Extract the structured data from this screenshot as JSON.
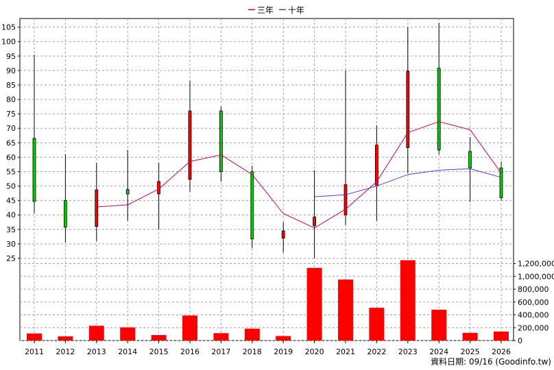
{
  "colors": {
    "up": "#ff0000",
    "down": "#00cc00",
    "ma3": "#cc0066",
    "ma10": "#6633cc",
    "volume": "#ff0000",
    "grid": "#a0a0a0"
  },
  "legend": [
    {
      "label": "三年",
      "color": "#cc0066"
    },
    {
      "label": "十年",
      "color": "#6633cc"
    }
  ],
  "source_text": "資料日期: 09/16 (Goodinfo.tw)",
  "chart_data": {
    "type": "candlestick",
    "categories": [
      "2011",
      "2012",
      "2013",
      "2014",
      "2015",
      "2016",
      "2017",
      "2018",
      "2019",
      "2020",
      "2021",
      "2022",
      "2023",
      "2024",
      "2025",
      "2026"
    ],
    "price_axis": {
      "ylim": [
        25,
        108
      ],
      "ticks": [
        25,
        30,
        35,
        40,
        45,
        50,
        55,
        60,
        65,
        70,
        75,
        80,
        85,
        90,
        95,
        100,
        105
      ]
    },
    "volume_axis": {
      "ylim": [
        0,
        1280000
      ],
      "ticks": [
        0,
        200000,
        400000,
        600000,
        800000,
        1000000,
        1200000
      ],
      "tick_labels": [
        "0",
        "200,000",
        "400,000",
        "600,000",
        "800,000",
        "1,000,000",
        "1,200,000"
      ]
    },
    "candles": [
      {
        "year": "2011",
        "open": 66.5,
        "close": 44.7,
        "high": 95.5,
        "low": 40.5
      },
      {
        "year": "2012",
        "open": 45.0,
        "close": 35.8,
        "high": 61.0,
        "low": 30.5
      },
      {
        "year": "2013",
        "open": 36.0,
        "close": 48.7,
        "high": 58.0,
        "low": 31.0
      },
      {
        "year": "2014",
        "open": 48.8,
        "close": 47.3,
        "high": 62.5,
        "low": 38.0
      },
      {
        "year": "2015",
        "open": 47.3,
        "close": 51.6,
        "high": 58.0,
        "low": 35.0
      },
      {
        "year": "2016",
        "open": 52.3,
        "close": 76.0,
        "high": 86.5,
        "low": 48.0
      },
      {
        "year": "2017",
        "open": 76.0,
        "close": 55.0,
        "high": 77.5,
        "low": 51.5
      },
      {
        "year": "2018",
        "open": 55.0,
        "close": 31.7,
        "high": 57.0,
        "low": 28.5
      },
      {
        "year": "2019",
        "open": 32.0,
        "close": 34.5,
        "high": 37.5,
        "low": 27.0
      },
      {
        "year": "2020",
        "open": 36.3,
        "close": 39.3,
        "high": 55.5,
        "low": 25.0
      },
      {
        "year": "2021",
        "open": 40.0,
        "close": 50.5,
        "high": 90.0,
        "low": 36.5
      },
      {
        "year": "2022",
        "open": 50.3,
        "close": 64.2,
        "high": 71.0,
        "low": 38.0
      },
      {
        "year": "2023",
        "open": 63.3,
        "close": 89.8,
        "high": 105.0,
        "low": 54.5
      },
      {
        "year": "2024",
        "open": 90.8,
        "close": 62.5,
        "high": 106.5,
        "low": 61.0
      },
      {
        "year": "2025",
        "open": 62.0,
        "close": 56.3,
        "high": 67.0,
        "low": 44.5
      },
      {
        "year": "2026",
        "open": 56.3,
        "close": 46.0,
        "high": 58.5,
        "low": 45.0
      }
    ],
    "series": [
      {
        "name": "三年",
        "values": [
          null,
          null,
          42.8,
          43.5,
          49.0,
          58.5,
          60.8,
          54.0,
          40.5,
          35.5,
          42.0,
          51.5,
          68.5,
          72.3,
          69.5,
          54.5
        ]
      },
      {
        "name": "十年",
        "values": [
          null,
          null,
          null,
          null,
          null,
          null,
          null,
          null,
          null,
          46.3,
          47.0,
          50.0,
          54.0,
          55.5,
          56.0,
          53.0
        ]
      }
    ],
    "volume": [
      110000,
      65000,
      230000,
      205000,
      85000,
      390000,
      115000,
      185000,
      70000,
      1130000,
      950000,
      510000,
      1250000,
      480000,
      120000,
      140000
    ]
  }
}
